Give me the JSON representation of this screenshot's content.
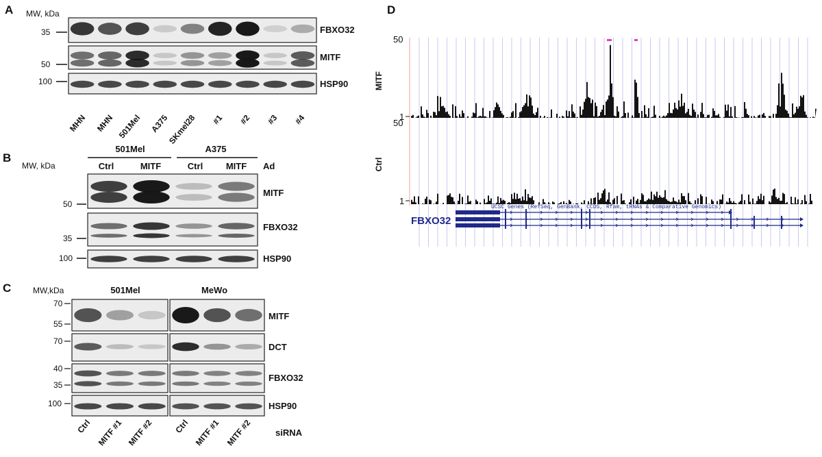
{
  "panel_labels": {
    "a": "A",
    "b": "B",
    "c": "C",
    "d": "D"
  },
  "panel_a": {
    "mw_label": "MW, kDa",
    "ticks": [
      "35",
      "50",
      "100"
    ],
    "proteins": [
      "FBXO32",
      "MITF",
      "HSP90"
    ],
    "lanes": [
      "MHN",
      "MHN",
      "501Mel",
      "A375",
      "SKmel28",
      "#1",
      "#2",
      "#3",
      "#4"
    ],
    "band_intensity": {
      "FBXO32": [
        0.85,
        0.7,
        0.8,
        0.08,
        0.45,
        0.95,
        1.0,
        0.05,
        0.25
      ],
      "MITF": [
        0.55,
        0.6,
        0.9,
        0.1,
        0.35,
        0.3,
        1.0,
        0.1,
        0.65
      ],
      "HSP90": [
        0.75,
        0.75,
        0.75,
        0.75,
        0.75,
        0.75,
        0.75,
        0.75,
        0.75
      ]
    }
  },
  "panel_b": {
    "mw_label": "MW, kDa",
    "groups": [
      "501Mel",
      "A375"
    ],
    "lanes": [
      "Ctrl",
      "MITF",
      "Ctrl",
      "MITF"
    ],
    "treatment_label": "Ad",
    "ticks": [
      "50",
      "35",
      "100"
    ],
    "proteins": [
      "MITF",
      "FBXO32",
      "HSP90"
    ],
    "band_intensity": {
      "MITF": [
        0.8,
        1.0,
        0.15,
        0.5
      ],
      "FBXO32": [
        0.55,
        0.85,
        0.35,
        0.6
      ],
      "HSP90": [
        0.8,
        0.8,
        0.8,
        0.8
      ]
    }
  },
  "panel_c": {
    "mw_label": "MW,kDa",
    "groups": [
      "501Mel",
      "MeWo"
    ],
    "lanes": [
      "Ctrl",
      "MITF #1",
      "MITF #2",
      "Ctrl",
      "MITF #1",
      "MITF #2"
    ],
    "treatment_label": "siRNA",
    "ticks": {
      "MITF": [
        "70",
        "55"
      ],
      "DCT": [
        "70"
      ],
      "FBXO32": [
        "40",
        "35"
      ],
      "HSP90": [
        "100"
      ]
    },
    "proteins": [
      "MITF",
      "DCT",
      "FBXO32",
      "HSP90"
    ],
    "band_intensity": {
      "MITF": [
        0.7,
        0.3,
        0.1,
        1.0,
        0.7,
        0.55
      ],
      "DCT": [
        0.65,
        0.15,
        0.1,
        0.9,
        0.35,
        0.25
      ],
      "FBXO32": [
        0.7,
        0.5,
        0.5,
        0.5,
        0.45,
        0.45
      ],
      "HSP90": [
        0.75,
        0.75,
        0.75,
        0.7,
        0.7,
        0.7
      ]
    }
  },
  "panel_d": {
    "tracks": [
      {
        "name": "MITF",
        "scale_max": "50",
        "scale_min": "1"
      },
      {
        "name": "Ctrl",
        "scale_max": "50",
        "scale_min": "1"
      }
    ],
    "gene_track_label": "UCSC Genes (RefSeq, GenBank, CCDS, Rfam, tRNAs & Comparative Genomics)",
    "gene_name": "FBXO32"
  },
  "colors": {
    "band": "#141414",
    "gene": "#1f2a8a",
    "grid": "#c9c9f2",
    "peak_tip": "#e040c0"
  }
}
